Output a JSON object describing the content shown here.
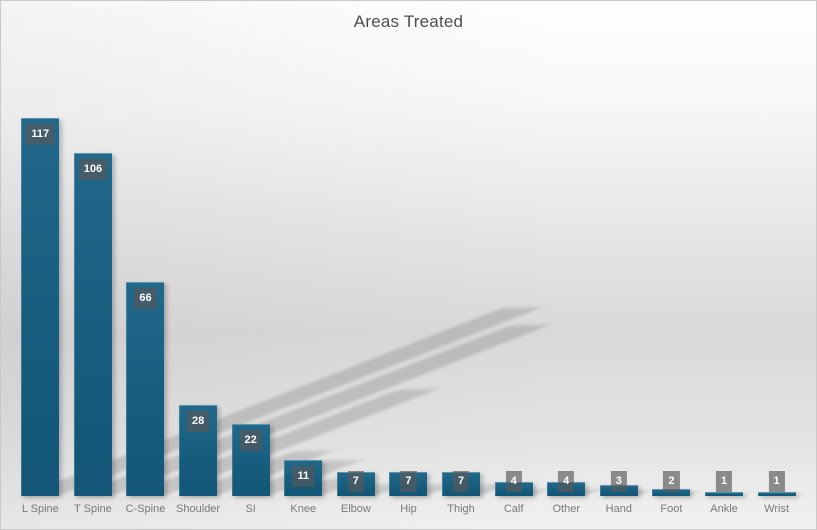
{
  "chart_data": {
    "type": "bar",
    "title": "Areas Treated",
    "categories": [
      "L Spine",
      "T Spine",
      "C-Spine",
      "Shoulder",
      "SI",
      "Knee",
      "Elbow",
      "Hip",
      "Thigh",
      "Calf",
      "Other",
      "Hand",
      "Foot",
      "Ankle",
      "Wrist"
    ],
    "values": [
      117,
      106,
      66,
      28,
      22,
      11,
      7,
      7,
      7,
      4,
      4,
      3,
      2,
      1,
      1
    ],
    "xlabel": "",
    "ylabel": "",
    "ylim": [
      0,
      117
    ],
    "grid": false,
    "legend": "none",
    "data_labels": "shown in gray boxes at inside end of bars",
    "colors": {
      "bar_fill": "#175d7e",
      "label_box": "rgba(88,88,88,0.66)",
      "label_text": "#ffffff",
      "axis_text": "#797979",
      "title_text": "#4e4e4e",
      "background_top": "#ffffff",
      "background_mid": "#d9d9d9",
      "border": "#c9c9c9"
    }
  }
}
